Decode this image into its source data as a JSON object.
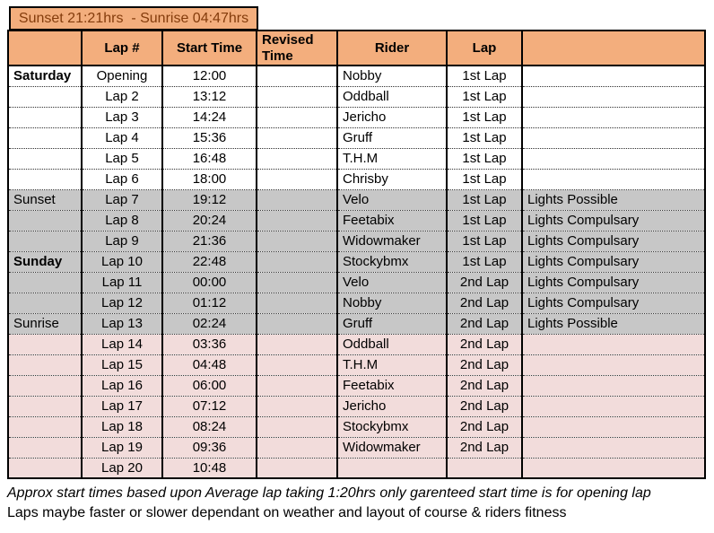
{
  "banner": {
    "text": "Sunset 21:21hrs  - Sunrise 04:47hrs"
  },
  "table": {
    "headers": {
      "day": "",
      "lap_no": "Lap #",
      "start": "Start Time",
      "revised": "Revised Time",
      "rider": "Rider",
      "lap": "Lap",
      "notes": ""
    },
    "rows": [
      {
        "day": "Saturday",
        "day_bold": true,
        "lap_no": "Opening",
        "start": "12:00",
        "revised": "",
        "rider": "Nobby",
        "lap": "1st Lap",
        "note": "",
        "bg": "white"
      },
      {
        "day": "",
        "day_bold": false,
        "lap_no": "Lap 2",
        "start": "13:12",
        "revised": "",
        "rider": "Oddball",
        "lap": "1st Lap",
        "note": "",
        "bg": "white"
      },
      {
        "day": "",
        "day_bold": false,
        "lap_no": "Lap 3",
        "start": "14:24",
        "revised": "",
        "rider": "Jericho",
        "lap": "1st Lap",
        "note": "",
        "bg": "white"
      },
      {
        "day": "",
        "day_bold": false,
        "lap_no": "Lap 4",
        "start": "15:36",
        "revised": "",
        "rider": "Gruff",
        "lap": "1st Lap",
        "note": "",
        "bg": "white"
      },
      {
        "day": "",
        "day_bold": false,
        "lap_no": "Lap 5",
        "start": "16:48",
        "revised": "",
        "rider": "T.H.M",
        "lap": "1st Lap",
        "note": "",
        "bg": "white"
      },
      {
        "day": "",
        "day_bold": false,
        "lap_no": "Lap 6",
        "start": "18:00",
        "revised": "",
        "rider": "Chrisby",
        "lap": "1st Lap",
        "note": "",
        "bg": "white"
      },
      {
        "day": "Sunset",
        "day_bold": false,
        "lap_no": "Lap 7",
        "start": "19:12",
        "revised": "",
        "rider": "Velo",
        "lap": "1st Lap",
        "note": "Lights Possible",
        "bg": "gray"
      },
      {
        "day": "",
        "day_bold": false,
        "lap_no": "Lap 8",
        "start": "20:24",
        "revised": "",
        "rider": "Feetabix",
        "lap": "1st Lap",
        "note": "Lights Compulsary",
        "bg": "gray"
      },
      {
        "day": "",
        "day_bold": false,
        "lap_no": "Lap 9",
        "start": "21:36",
        "revised": "",
        "rider": "Widowmaker",
        "lap": "1st Lap",
        "note": "Lights Compulsary",
        "bg": "gray"
      },
      {
        "day": "Sunday",
        "day_bold": true,
        "lap_no": "Lap 10",
        "start": "22:48",
        "revised": "",
        "rider": "Stockybmx",
        "lap": "1st Lap",
        "note": "Lights Compulsary",
        "bg": "gray"
      },
      {
        "day": "",
        "day_bold": false,
        "lap_no": "Lap 11",
        "start": "00:00",
        "revised": "",
        "rider": "Velo",
        "lap": "2nd Lap",
        "note": "Lights Compulsary",
        "bg": "gray"
      },
      {
        "day": "",
        "day_bold": false,
        "lap_no": "Lap 12",
        "start": "01:12",
        "revised": "",
        "rider": "Nobby",
        "lap": "2nd Lap",
        "note": "Lights Compulsary",
        "bg": "gray"
      },
      {
        "day": "Sunrise",
        "day_bold": false,
        "lap_no": "Lap 13",
        "start": "02:24",
        "revised": "",
        "rider": "Gruff",
        "lap": "2nd Lap",
        "note": "Lights Possible",
        "bg": "gray"
      },
      {
        "day": "",
        "day_bold": false,
        "lap_no": "Lap 14",
        "start": "03:36",
        "revised": "",
        "rider": "Oddball",
        "lap": "2nd Lap",
        "note": "",
        "bg": "pink"
      },
      {
        "day": "",
        "day_bold": false,
        "lap_no": "Lap 15",
        "start": "04:48",
        "revised": "",
        "rider": "T.H.M",
        "lap": "2nd Lap",
        "note": "",
        "bg": "pink"
      },
      {
        "day": "",
        "day_bold": false,
        "lap_no": "Lap 16",
        "start": "06:00",
        "revised": "",
        "rider": "Feetabix",
        "lap": "2nd Lap",
        "note": "",
        "bg": "pink"
      },
      {
        "day": "",
        "day_bold": false,
        "lap_no": "Lap 17",
        "start": "07:12",
        "revised": "",
        "rider": "Jericho",
        "lap": "2nd Lap",
        "note": "",
        "bg": "pink"
      },
      {
        "day": "",
        "day_bold": false,
        "lap_no": "Lap 18",
        "start": "08:24",
        "revised": "",
        "rider": "Stockybmx",
        "lap": "2nd Lap",
        "note": "",
        "bg": "pink"
      },
      {
        "day": "",
        "day_bold": false,
        "lap_no": "Lap 19",
        "start": "09:36",
        "revised": "",
        "rider": "Widowmaker",
        "lap": "2nd Lap",
        "note": "",
        "bg": "pink"
      },
      {
        "day": "",
        "day_bold": false,
        "lap_no": "Lap 20",
        "start": "10:48",
        "revised": "",
        "rider": "",
        "lap": "",
        "note": "",
        "bg": "pink"
      }
    ]
  },
  "footnotes": {
    "line1": "Approx start times based upon Average lap taking 1:20hrs only garenteed start time is for opening lap",
    "line2": "Laps maybe faster or slower dependant on weather and layout of course & riders fitness"
  },
  "colors": {
    "header_orange": "#F3AE7D",
    "banner_text": "#843C0C",
    "section_gray": "#C7C7C7",
    "section_pink": "#F2DCDB",
    "row_white": "#FFFFFF",
    "border_black": "#000000"
  }
}
